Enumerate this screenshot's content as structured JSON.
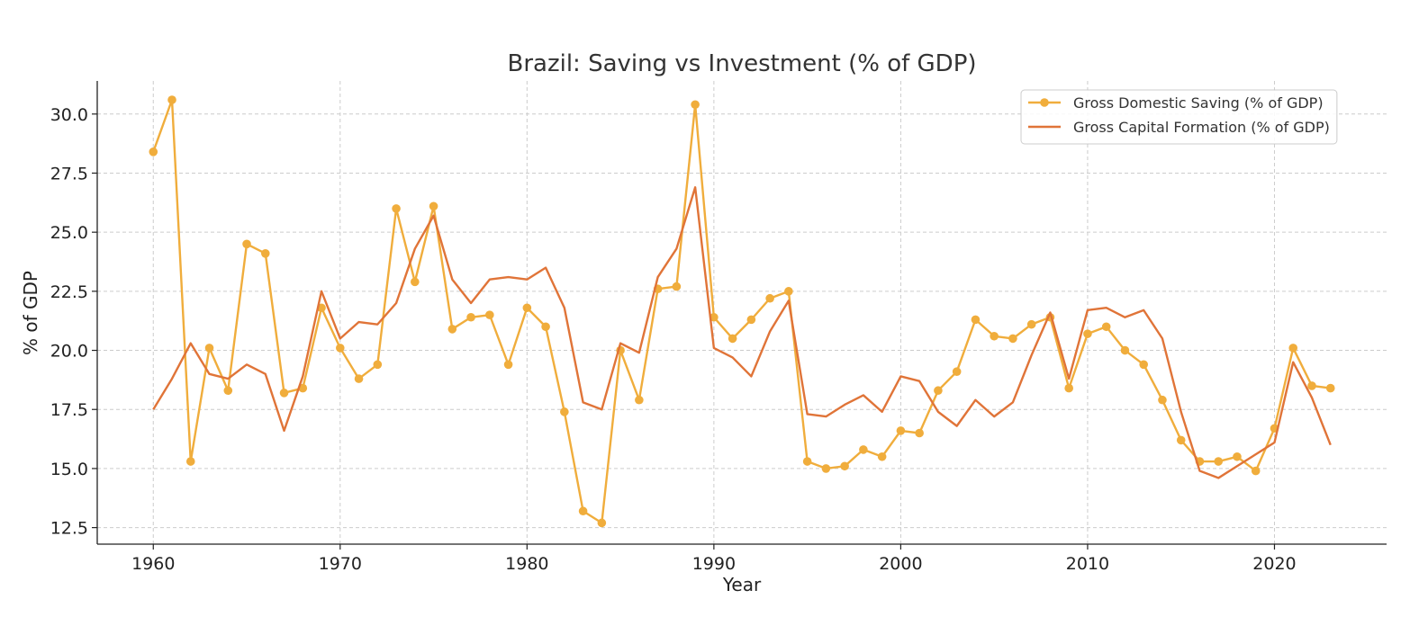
{
  "chart_data": {
    "type": "line",
    "title": "Brazil: Saving vs Investment (% of GDP)",
    "xlabel": "Year",
    "ylabel": "% of GDP",
    "xlim": [
      1957,
      2026
    ],
    "ylim": [
      11.8,
      31.4
    ],
    "xticks": [
      1960,
      1970,
      1980,
      1990,
      2000,
      2010,
      2020
    ],
    "yticks": [
      12.5,
      15.0,
      17.5,
      20.0,
      22.5,
      25.0,
      27.5,
      30.0
    ],
    "grid": true,
    "legend_position": "top-right",
    "x": [
      1960,
      1961,
      1962,
      1963,
      1964,
      1965,
      1966,
      1967,
      1968,
      1969,
      1970,
      1971,
      1972,
      1973,
      1974,
      1975,
      1976,
      1977,
      1978,
      1979,
      1980,
      1981,
      1982,
      1983,
      1984,
      1985,
      1986,
      1987,
      1988,
      1989,
      1990,
      1991,
      1992,
      1993,
      1994,
      1995,
      1996,
      1997,
      1998,
      1999,
      2000,
      2001,
      2002,
      2003,
      2004,
      2005,
      2006,
      2007,
      2008,
      2009,
      2010,
      2011,
      2012,
      2013,
      2014,
      2015,
      2016,
      2017,
      2018,
      2019,
      2020,
      2021,
      2022,
      2023
    ],
    "series": [
      {
        "name": "Gross Domestic Saving (% of GDP)",
        "color": "#f0ad3c",
        "marker": "circle",
        "values": [
          28.4,
          30.6,
          15.3,
          20.1,
          18.3,
          24.5,
          24.1,
          18.2,
          18.4,
          21.8,
          20.1,
          18.8,
          19.4,
          26.0,
          22.9,
          26.1,
          20.9,
          21.4,
          21.5,
          19.4,
          21.8,
          21.0,
          17.4,
          13.2,
          12.7,
          20.0,
          17.9,
          22.6,
          22.7,
          30.4,
          21.4,
          20.5,
          21.3,
          22.2,
          22.5,
          15.3,
          15.0,
          15.1,
          15.8,
          15.5,
          16.6,
          16.5,
          18.3,
          19.1,
          21.3,
          20.6,
          20.5,
          21.1,
          21.4,
          18.4,
          20.7,
          21.0,
          20.0,
          19.4,
          17.9,
          16.2,
          15.3,
          15.3,
          15.5,
          14.9,
          16.7,
          20.1,
          18.5,
          18.4
        ]
      },
      {
        "name": "Gross Capital Formation (% of GDP)",
        "color": "#e07438",
        "marker": "none",
        "values": [
          17.5,
          18.8,
          20.3,
          19.0,
          18.8,
          19.4,
          19.0,
          16.6,
          18.9,
          22.5,
          20.5,
          21.2,
          21.1,
          22.0,
          24.3,
          25.7,
          23.0,
          22.0,
          23.0,
          23.1,
          23.0,
          23.5,
          21.8,
          17.8,
          17.5,
          20.3,
          19.9,
          23.1,
          24.3,
          26.9,
          20.1,
          19.7,
          18.9,
          20.8,
          22.1,
          17.3,
          17.2,
          17.7,
          18.1,
          17.4,
          18.9,
          18.7,
          17.4,
          16.8,
          17.9,
          17.2,
          17.8,
          19.8,
          21.6,
          18.8,
          21.7,
          21.8,
          21.4,
          21.7,
          20.5,
          17.4,
          14.9,
          14.6,
          15.1,
          15.6,
          16.1,
          19.5,
          18.0,
          16.0
        ]
      }
    ]
  }
}
